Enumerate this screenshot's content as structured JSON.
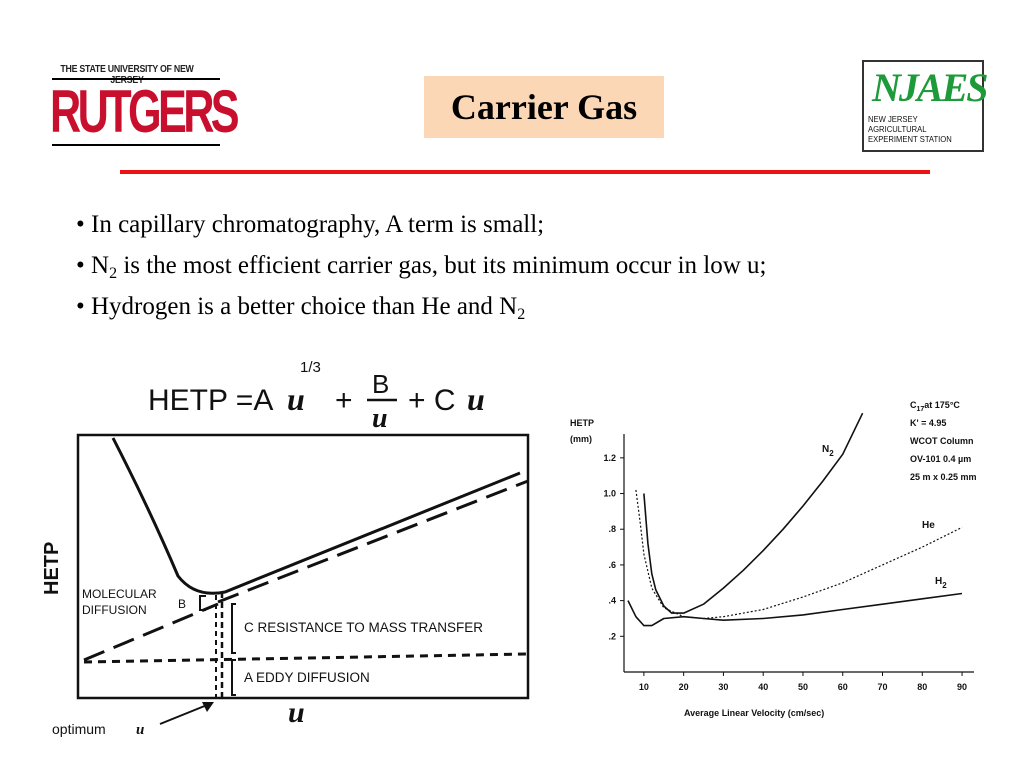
{
  "logos": {
    "rutgers": {
      "university": "THE STATE UNIVERSITY OF NEW JERSEY",
      "name": "RUTGERS"
    },
    "njaes": {
      "mark": "NJAES",
      "sub_lines": [
        "NEW JERSEY",
        "AGRICULTURAL",
        "EXPERIMENT STATION"
      ]
    }
  },
  "title": "Carrier Gas",
  "colors": {
    "title_bg": "#fcd7b6",
    "rule": "#e11111",
    "rutgers_red": "#c8102e",
    "njaes_green": "#1f9a3a"
  },
  "bullets": [
    {
      "text": "• In capillary chromatography, A term is small;"
    },
    {
      "prefix": "• N",
      "sub": "2",
      "suffix": " is the most efficient carrier gas, but its minimum occur in low u;"
    },
    {
      "prefix": "• Hydrogen is a better choice than He and N",
      "sub": "2",
      "suffix": ""
    }
  ],
  "left_diagram": {
    "equation": {
      "lhs": "HETP =A",
      "u": "u",
      "exponent": "1/3",
      "plus1": "+",
      "frac_num": "B",
      "frac_den": "u",
      "plus2": "+ C",
      "u2": "u"
    },
    "y_label": "HETP",
    "x_label": "u",
    "annotations": {
      "molecular_1": "MOLECULAR",
      "molecular_2": "DIFFUSION",
      "b_label": "B",
      "c_term": "C RESISTANCE TO MASS TRANSFER",
      "a_term": "A EDDY DIFFUSION",
      "optimum": "optimum",
      "optimum_u": "u"
    }
  },
  "chart_data": {
    "type": "line",
    "title": "",
    "xlabel": "Average Linear Velocity (cm/sec)",
    "ylabel": "HETP",
    "ylabel_unit": "(mm)",
    "xlim": [
      5,
      92
    ],
    "ylim": [
      0,
      1.3
    ],
    "x_ticks": [
      "10",
      "20",
      "30",
      "40",
      "50",
      "60",
      "70",
      "80",
      "90"
    ],
    "y_ticks": [
      ".2",
      ".4",
      ".6",
      ".8",
      "1.0",
      "1.2"
    ],
    "conditions": [
      "C17 at 175°C",
      "K' = 4.95",
      "WCOT Column",
      "OV-101  0.4 µm",
      "25 m x 0.25 mm"
    ],
    "conditions_display": [
      "C",
      "17",
      "at 175°C",
      "K' = 4.95",
      "WCOT Column",
      "OV-101  0.4 µm",
      "25 m x 0.25 mm"
    ],
    "series": [
      {
        "name": "N2",
        "label_main": "N",
        "label_sub": "2",
        "style": "solid",
        "x": [
          10,
          11,
          12,
          13,
          15,
          17,
          20,
          25,
          30,
          35,
          40,
          45,
          50,
          55,
          60,
          65
        ],
        "y": [
          1.0,
          0.72,
          0.55,
          0.46,
          0.37,
          0.33,
          0.33,
          0.38,
          0.47,
          0.57,
          0.68,
          0.8,
          0.93,
          1.07,
          1.22,
          1.45
        ]
      },
      {
        "name": "He",
        "label_main": "He",
        "label_sub": "",
        "style": "dotted",
        "x": [
          8,
          9,
          10,
          12,
          15,
          20,
          25,
          30,
          40,
          50,
          60,
          70,
          80,
          90
        ],
        "y": [
          1.02,
          0.85,
          0.66,
          0.47,
          0.36,
          0.31,
          0.3,
          0.31,
          0.35,
          0.42,
          0.5,
          0.6,
          0.7,
          0.81
        ]
      },
      {
        "name": "H2",
        "label_main": "H",
        "label_sub": "2",
        "style": "solid",
        "x": [
          6,
          8,
          10,
          12,
          15,
          20,
          25,
          30,
          40,
          50,
          60,
          70,
          80,
          90
        ],
        "y": [
          0.4,
          0.31,
          0.26,
          0.26,
          0.3,
          0.31,
          0.3,
          0.29,
          0.3,
          0.32,
          0.35,
          0.38,
          0.41,
          0.44
        ]
      }
    ]
  }
}
